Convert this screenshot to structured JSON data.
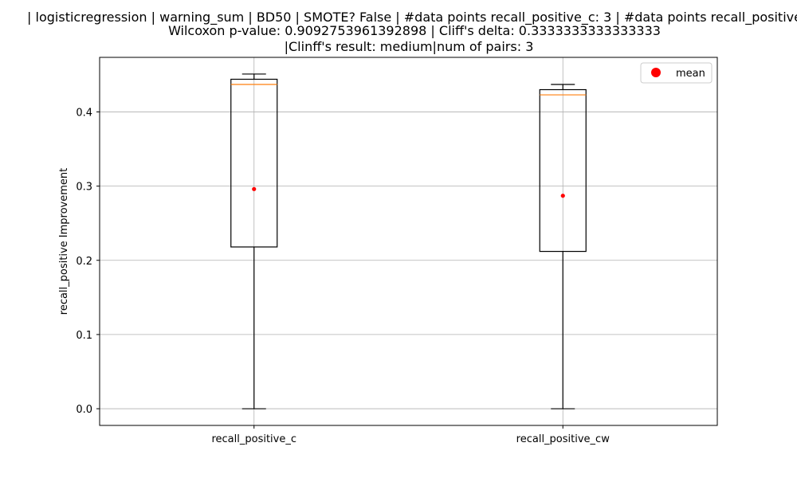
{
  "chart_data": {
    "type": "box",
    "title_lines": [
      "| logisticregression | warning_sum | BD50 | SMOTE? False | #data points recall_positive_c: 3 | #data points recall_positive",
      "Wilcoxon p-value: 0.9092753961392898 | Cliff's delta: 0.3333333333333333",
      "|Clinff's result: medium|num of pairs: 3"
    ],
    "xlabel": "",
    "ylabel": "recall_positive Improvement",
    "categories": [
      "recall_positive_c",
      "recall_positive_cw"
    ],
    "boxes": [
      {
        "whisker_low": 0.0,
        "q1": 0.218,
        "median": 0.437,
        "q3": 0.444,
        "whisker_high": 0.451,
        "mean": 0.296
      },
      {
        "whisker_low": 0.0,
        "q1": 0.212,
        "median": 0.423,
        "q3": 0.43,
        "whisker_high": 0.437,
        "mean": 0.287
      }
    ],
    "ylim": [
      -0.0225,
      0.4735
    ],
    "yticks": [
      0.0,
      0.1,
      0.2,
      0.3,
      0.4
    ],
    "ytick_labels": [
      "0.0",
      "0.1",
      "0.2",
      "0.3",
      "0.4"
    ],
    "grid": true,
    "legend": {
      "placement": "upper-right",
      "entries": [
        {
          "label": "mean",
          "color": "#ff0000"
        }
      ]
    },
    "colors": {
      "box": "#000000",
      "median": "#ff7f0e",
      "mean": "#ff0000",
      "grid": "#b0b0b0"
    }
  }
}
